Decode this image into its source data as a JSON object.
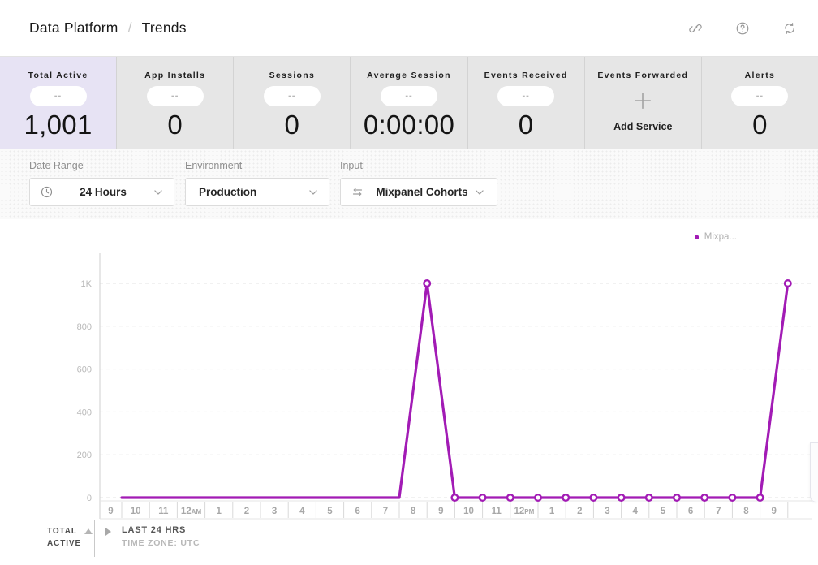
{
  "header": {
    "breadcrumb_parent": "Data Platform",
    "breadcrumb_separator": "/",
    "breadcrumb_current": "Trends",
    "icons": [
      "link-icon",
      "help-icon",
      "refresh-icon"
    ]
  },
  "metrics": {
    "cards": [
      {
        "label": "Total Active",
        "pill": "--",
        "value": "1,001",
        "highlighted": true
      },
      {
        "label": "App Installs",
        "pill": "--",
        "value": "0"
      },
      {
        "label": "Sessions",
        "pill": "--",
        "value": "0"
      },
      {
        "label": "Average Session",
        "pill": "--",
        "value": "0:00:00"
      },
      {
        "label": "Events Received",
        "pill": "--",
        "value": "0"
      },
      {
        "label": "Events Forwarded",
        "action_icon": "plus-icon",
        "action_label": "Add Service"
      },
      {
        "label": "Alerts",
        "pill": "--",
        "value": "0"
      }
    ]
  },
  "filters": {
    "date_range": {
      "label": "Date Range",
      "value": "24 Hours",
      "icon": "clock-icon"
    },
    "environment": {
      "label": "Environment",
      "value": "Production"
    },
    "input": {
      "label": "Input",
      "value": "Mixpanel Cohorts",
      "icon": "swap-icon"
    }
  },
  "colors": {
    "series_purple": "#a21bb5",
    "highlight_card_bg": "#e7e3f4",
    "card_bg": "#e6e6e6"
  },
  "chart_data": {
    "type": "line",
    "title": "",
    "legend": [
      {
        "label": "Mixpa...",
        "color": "#a21bb5"
      }
    ],
    "x_labels": [
      "9",
      "10",
      "11",
      "12 AM",
      "1",
      "2",
      "3",
      "4",
      "5",
      "6",
      "7",
      "8",
      "9",
      "10",
      "11",
      "12 PM",
      "1",
      "2",
      "3",
      "4",
      "5",
      "6",
      "7",
      "8",
      "9"
    ],
    "values": [
      0,
      0,
      0,
      0,
      0,
      0,
      0,
      0,
      0,
      0,
      0,
      1000,
      0,
      0,
      0,
      0,
      0,
      0,
      0,
      0,
      0,
      0,
      0,
      0,
      1000
    ],
    "marker_start_index": 11,
    "yticks": {
      "values": [
        0,
        200,
        400,
        600,
        800,
        1000
      ],
      "labels": [
        "0",
        "200",
        "400",
        "600",
        "800",
        "1K"
      ]
    },
    "ylim": [
      0,
      1100
    ],
    "xlabel": "",
    "ylabel": "",
    "grid": "horizontal-dashed",
    "legend_position": "top-right",
    "line_color": "#a21bb5"
  },
  "chart_footer": {
    "row_label_line1": "TOTAL",
    "row_label_line2": "ACTIVE",
    "range_label": "LAST 24 HRS",
    "timezone_label": "TIME ZONE: UTC"
  }
}
